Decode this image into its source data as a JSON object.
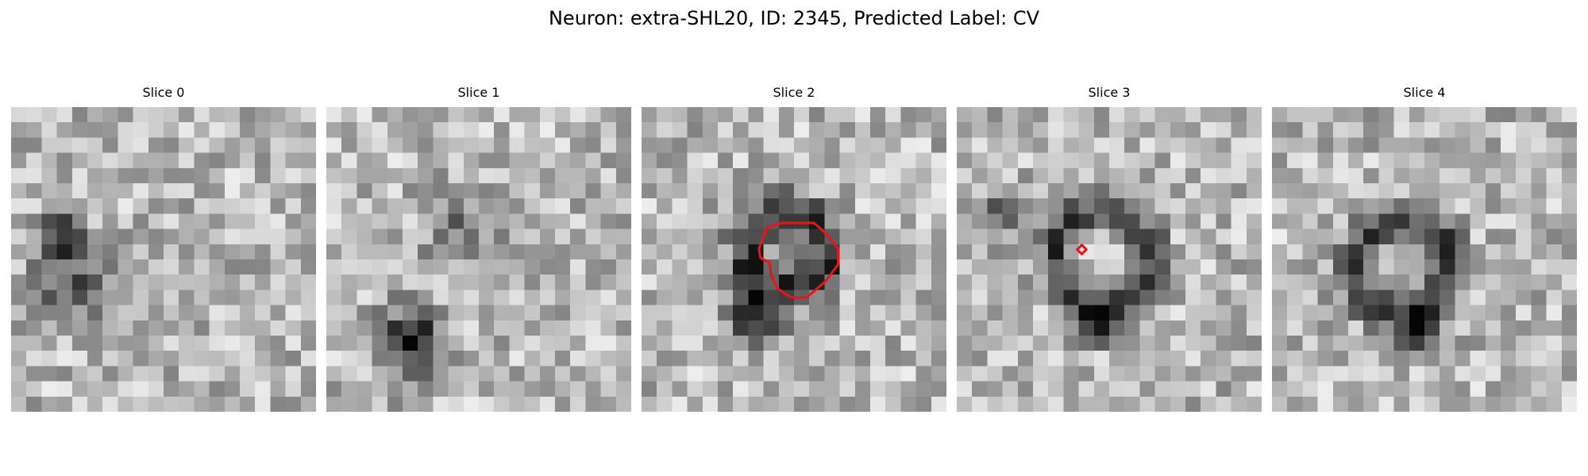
{
  "title": "Neuron: extra-SHL20, ID: 2345, Predicted Label: CV",
  "slices": [
    {
      "label": "Slice 0"
    },
    {
      "label": "Slice 1"
    },
    {
      "label": "Slice 2"
    },
    {
      "label": "Slice 3"
    },
    {
      "label": "Slice 4"
    }
  ],
  "contour_color": "#e8141c",
  "colormap": "grayscale"
}
